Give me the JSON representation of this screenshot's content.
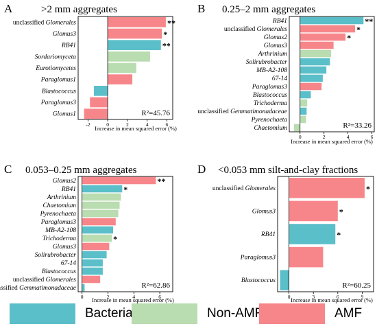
{
  "colors": {
    "Bacteria": "#5bbfc9",
    "Non-AMF fungi": "#b9dcb0",
    "AMF": "#f7868a"
  },
  "legend": [
    {
      "label": "Bacteria",
      "color": "#5bbfc9"
    },
    {
      "label": "Non-AMF fungi",
      "color": "#b9dcb0"
    },
    {
      "label": "AMF",
      "color": "#f7868a"
    }
  ],
  "chart_data": [
    {
      "panel": "A",
      "title": ">2 mm aggregates",
      "type": "bar",
      "orientation": "horizontal",
      "xlabel": "Increase in mean squared error (%)",
      "xlim": [
        -3,
        6.6
      ],
      "xticks": [
        "-2",
        "0",
        "2",
        "4",
        "6"
      ],
      "r2": "R²=45.76",
      "categories": [
        {
          "prefix": "unclassified ",
          "name": "Glomerales"
        },
        {
          "prefix": "",
          "name": "Glomus3"
        },
        {
          "prefix": "",
          "name": "RB41"
        },
        {
          "prefix": "",
          "name": "Sordariomyceta"
        },
        {
          "prefix": "",
          "name": "Eurotiomycetes"
        },
        {
          "prefix": "",
          "name": "Paraglomus1"
        },
        {
          "prefix": "",
          "name": "Blastococcus"
        },
        {
          "prefix": "",
          "name": "Paraglomus3"
        },
        {
          "prefix": "",
          "name": "Glomus1"
        }
      ],
      "values": [
        5.9,
        5.5,
        5.4,
        4.3,
        2.9,
        2.5,
        -1.4,
        -1.8,
        -2.4
      ],
      "groups": [
        "AMF",
        "AMF",
        "Bacteria",
        "Non-AMF fungi",
        "Non-AMF fungi",
        "AMF",
        "Bacteria",
        "AMF",
        "AMF"
      ],
      "sig": [
        "**",
        "*",
        "**",
        "",
        "",
        "",
        "",
        "",
        ""
      ]
    },
    {
      "panel": "B",
      "title": "0.25–2 mm aggregates",
      "type": "bar",
      "orientation": "horizontal",
      "xlabel": "Increase in mean squared error (%)",
      "xlim": [
        -0.9,
        6.2
      ],
      "xticks": [
        "0",
        "2",
        "4",
        "6"
      ],
      "r2": "R²=33.26",
      "categories": [
        {
          "prefix": "",
          "name": "RB41"
        },
        {
          "prefix": "unclassified ",
          "name": "Glomerales"
        },
        {
          "prefix": "",
          "name": "Glomus2"
        },
        {
          "prefix": "",
          "name": "Glomus3"
        },
        {
          "prefix": "",
          "name": "Arthrinium"
        },
        {
          "prefix": "",
          "name": "Solirubrobacter"
        },
        {
          "prefix": "",
          "name": "MB-A2-108"
        },
        {
          "prefix": "",
          "name": "67-14"
        },
        {
          "prefix": "",
          "name": "Paraglomus3"
        },
        {
          "prefix": "",
          "name": "Blastococcus"
        },
        {
          "prefix": "",
          "name": "Trichoderma"
        },
        {
          "prefix": "unclassified ",
          "name": "Gemmatimonadaceae"
        },
        {
          "prefix": "",
          "name": "Pyrenochaeta"
        },
        {
          "prefix": "",
          "name": "Chaetomium"
        }
      ],
      "values": [
        5.3,
        4.6,
        3.8,
        2.8,
        2.6,
        2.5,
        2.2,
        1.9,
        1.8,
        0.9,
        0.6,
        0.55,
        0.5,
        -0.5
      ],
      "groups": [
        "Bacteria",
        "AMF",
        "AMF",
        "AMF",
        "Non-AMF fungi",
        "Bacteria",
        "Bacteria",
        "Bacteria",
        "AMF",
        "Bacteria",
        "Non-AMF fungi",
        "Bacteria",
        "Non-AMF fungi",
        "Non-AMF fungi"
      ],
      "sig": [
        "**",
        "*",
        "*",
        "",
        "",
        "",
        "",
        "",
        "",
        "",
        "",
        "",
        "",
        ""
      ]
    },
    {
      "panel": "C",
      "title": "0.053–0.25 mm aggregates",
      "type": "bar",
      "orientation": "horizontal",
      "xlabel": "Increase in mean squared error (%)",
      "xlim": [
        -0.3,
        7.0
      ],
      "xticks": [
        "0",
        "2",
        "4",
        "6"
      ],
      "r2": "R²=62.86",
      "categories": [
        {
          "prefix": "",
          "name": "Glomus2"
        },
        {
          "prefix": "",
          "name": "RB41"
        },
        {
          "prefix": "",
          "name": "Arthrinium"
        },
        {
          "prefix": "",
          "name": "Chaetomium"
        },
        {
          "prefix": "",
          "name": "Pyrenochaeta"
        },
        {
          "prefix": "",
          "name": "Paraglomus3"
        },
        {
          "prefix": "",
          "name": "MB-A2-108"
        },
        {
          "prefix": "",
          "name": "Trichoderma"
        },
        {
          "prefix": "",
          "name": "Glomus3"
        },
        {
          "prefix": "",
          "name": "Solirubrobacter"
        },
        {
          "prefix": "",
          "name": "67-14"
        },
        {
          "prefix": "",
          "name": "Blastococcus"
        },
        {
          "prefix": "unclassified ",
          "name": "Glomerales"
        },
        {
          "prefix": "unclassified ",
          "name": "Gemmatimonadaceae"
        }
      ],
      "values": [
        5.7,
        3.1,
        3.0,
        2.9,
        2.8,
        2.6,
        2.4,
        2.3,
        2.1,
        1.9,
        1.6,
        1.6,
        1.4,
        0.2
      ],
      "groups": [
        "AMF",
        "Bacteria",
        "Non-AMF fungi",
        "Non-AMF fungi",
        "Non-AMF fungi",
        "AMF",
        "Bacteria",
        "Non-AMF fungi",
        "AMF",
        "Bacteria",
        "Bacteria",
        "Bacteria",
        "AMF",
        "Bacteria"
      ],
      "sig": [
        "**",
        "*",
        "",
        "",
        "",
        "",
        "",
        "*",
        "",
        "",
        "",
        "",
        "",
        ""
      ]
    },
    {
      "panel": "D",
      "title": "<0.053 mm silt-and-clay fractions",
      "type": "bar",
      "orientation": "horizontal",
      "xlabel": "Increase in mean squared error (%)",
      "xlim": [
        -1.4,
        10.4
      ],
      "xticks": [
        "0",
        "3",
        "6",
        "9"
      ],
      "r2": "R²=60.25",
      "categories": [
        {
          "prefix": "unclassified ",
          "name": "Glomerales"
        },
        {
          "prefix": "",
          "name": "Glomus3"
        },
        {
          "prefix": "",
          "name": "RB41"
        },
        {
          "prefix": "",
          "name": "Paraglomus3"
        },
        {
          "prefix": "",
          "name": "Blastococcus"
        }
      ],
      "values": [
        9.3,
        6.0,
        5.7,
        4.2,
        -1.1
      ],
      "groups": [
        "AMF",
        "AMF",
        "Bacteria",
        "AMF",
        "Bacteria"
      ],
      "sig": [
        "*",
        "*",
        "*",
        "",
        ""
      ]
    }
  ]
}
